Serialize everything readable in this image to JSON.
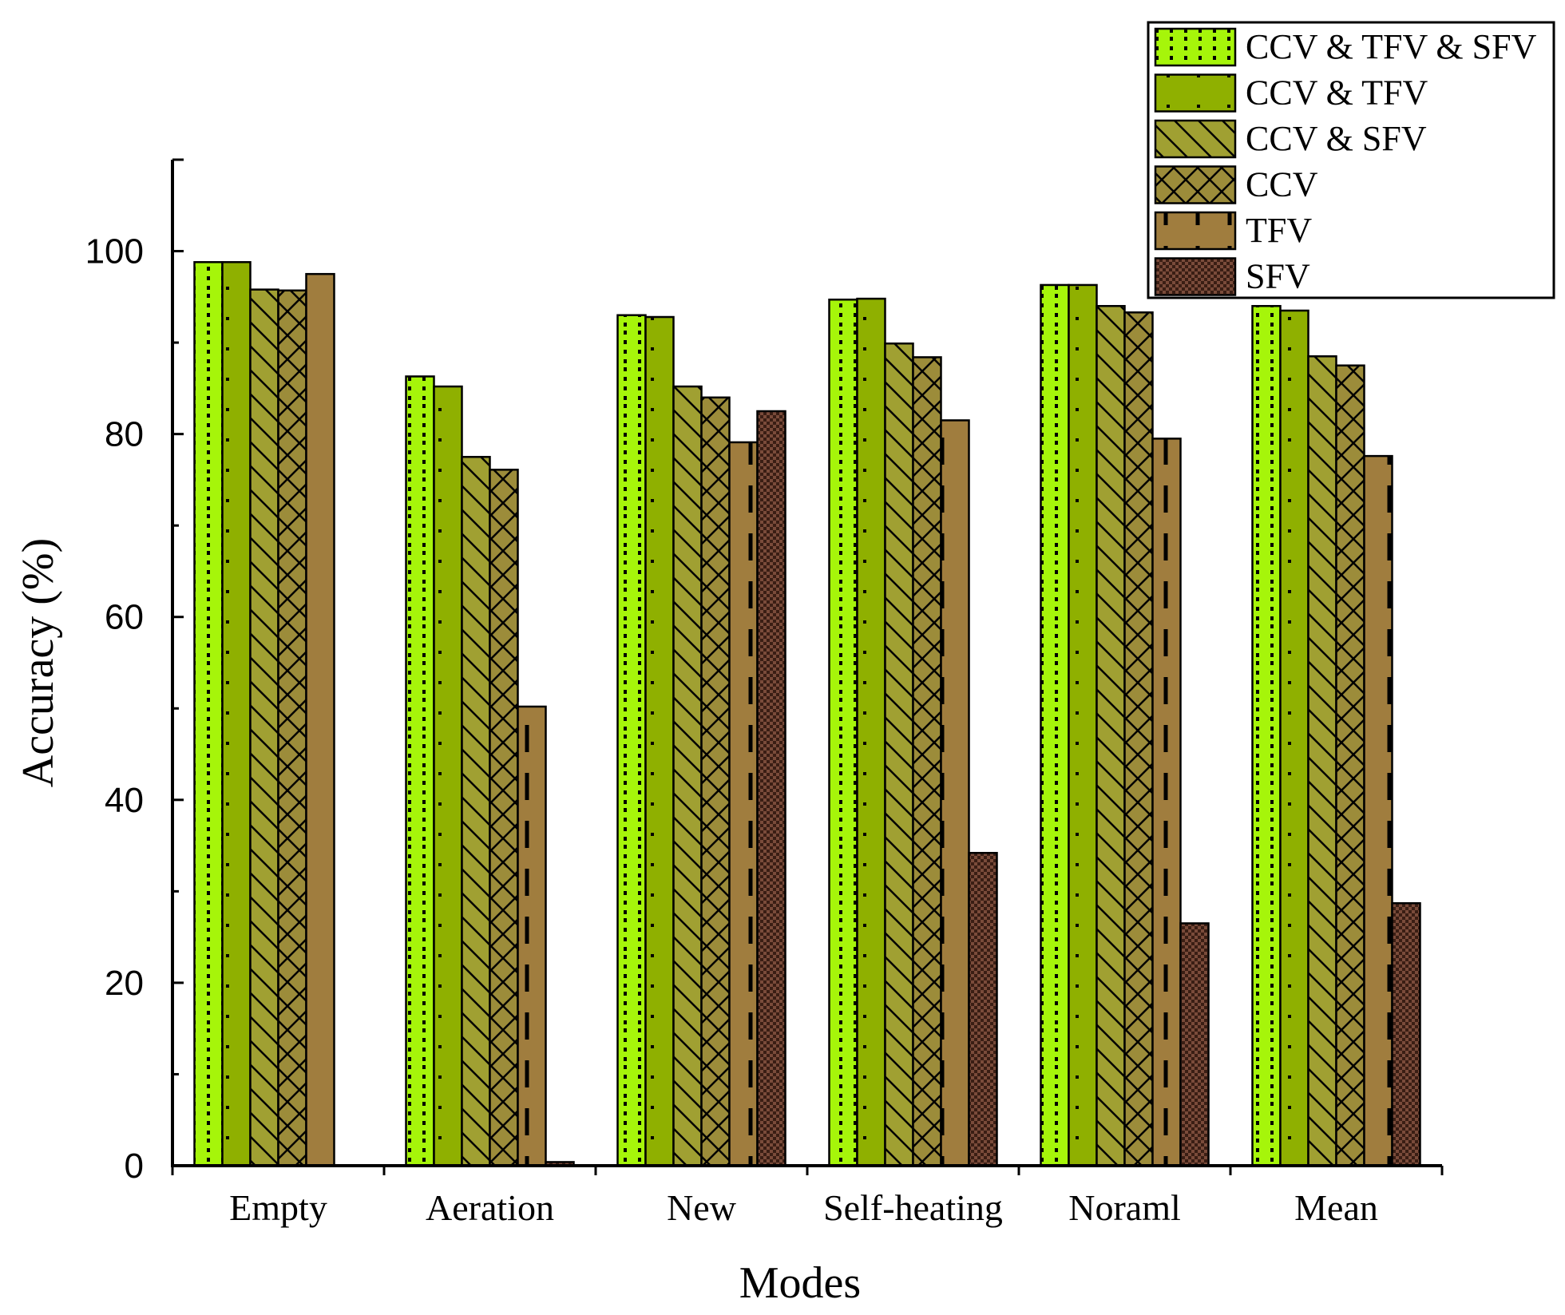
{
  "chart_data": {
    "type": "bar",
    "title": "",
    "xlabel": "Modes",
    "ylabel": "Accuracy (%)",
    "ylim": [
      0,
      110
    ],
    "yticks": [
      0,
      20,
      40,
      60,
      80,
      100
    ],
    "categories": [
      "Empty",
      "Aeration",
      "New",
      "Self-heating",
      "Noraml",
      "Mean"
    ],
    "legend_position": "top-right",
    "grid": false,
    "series": [
      {
        "name": "CCV & TFV & SFV",
        "color": "#a6f50a",
        "pattern": "dotted-lines",
        "values": [
          98.8,
          86.3,
          93.0,
          94.7,
          96.3,
          94.0
        ]
      },
      {
        "name": "CCV & TFV",
        "color": "#8fb000",
        "pattern": "dots",
        "values": [
          98.8,
          85.2,
          92.8,
          94.8,
          96.3,
          93.5
        ]
      },
      {
        "name": "CCV & SFV",
        "color": "#a0a032",
        "pattern": "diagonal",
        "values": [
          95.8,
          77.5,
          85.2,
          89.9,
          94.0,
          88.5
        ]
      },
      {
        "name": "CCV",
        "color": "#9c8c3a",
        "pattern": "crosshatch",
        "values": [
          95.7,
          76.1,
          84.0,
          88.4,
          93.3,
          87.5
        ]
      },
      {
        "name": "TFV",
        "color": "#a07d3e",
        "pattern": "dashed-vertical",
        "values": [
          97.5,
          50.2,
          79.1,
          81.5,
          79.5,
          77.6
        ]
      },
      {
        "name": "SFV",
        "color": "#7a4b3a",
        "pattern": "checker",
        "values": [
          0.0,
          0.4,
          82.5,
          34.2,
          26.5,
          28.7
        ]
      }
    ]
  }
}
